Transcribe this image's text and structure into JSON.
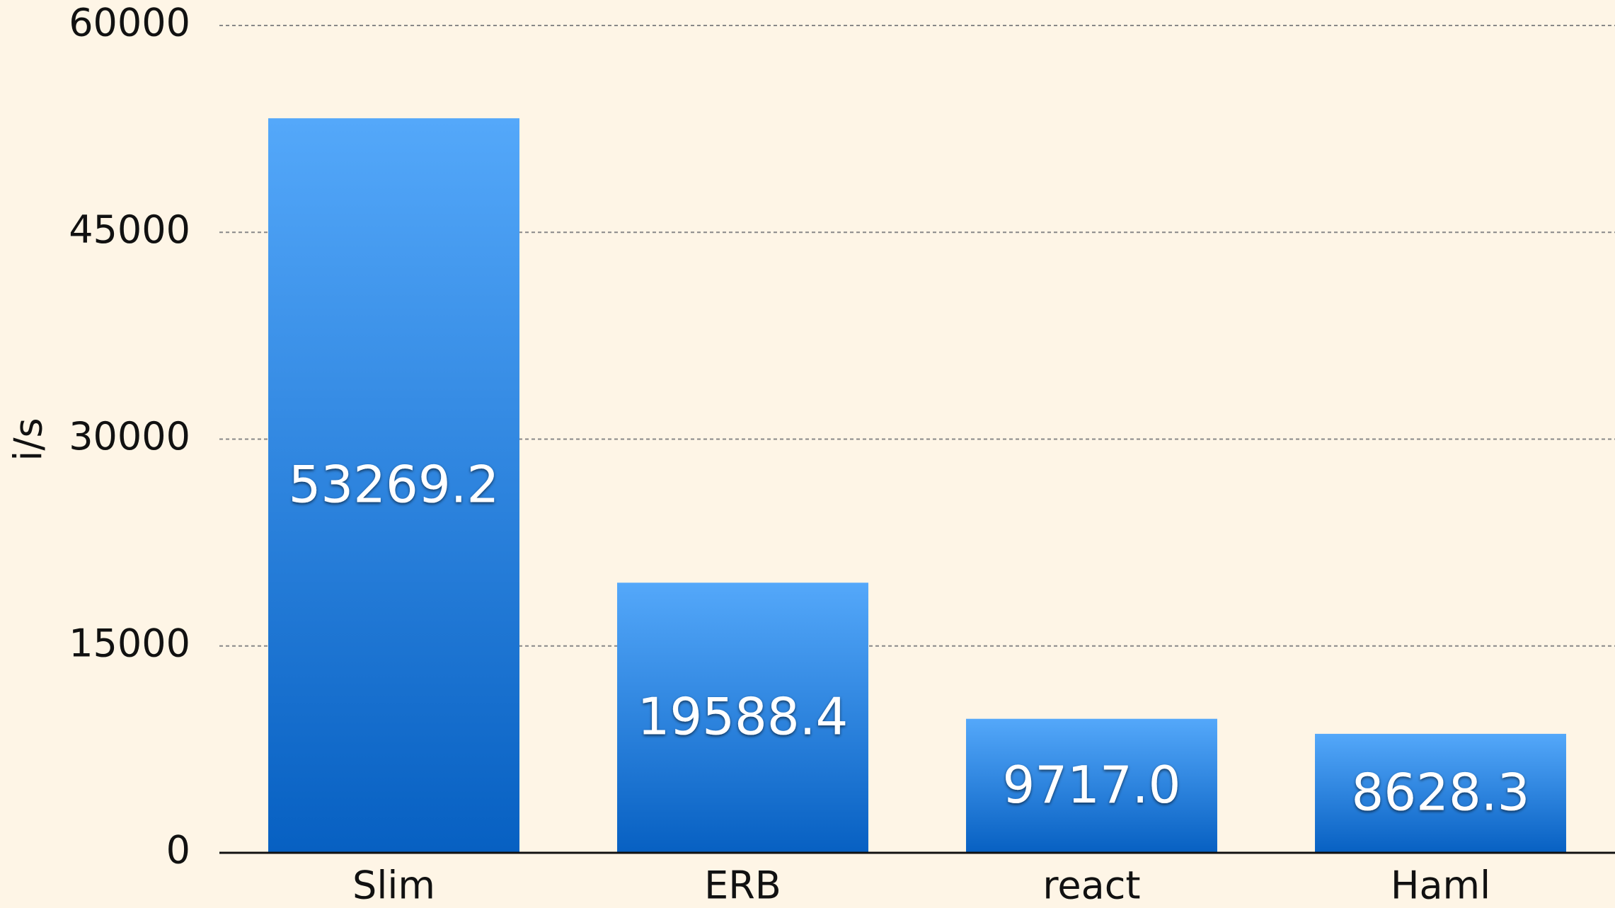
{
  "chart_data": {
    "type": "bar",
    "y_label": "i/s",
    "categories": [
      "Slim",
      "ERB",
      "react",
      "Haml"
    ],
    "values": [
      53269.2,
      19588.4,
      9717.0,
      8628.3
    ],
    "value_labels": [
      "53269.2",
      "19588.4",
      "9717.0",
      "8628.3"
    ],
    "color": [
      "#54a8fa",
      "#0760c2"
    ],
    "ylim": [
      0,
      60000
    ],
    "yticks": [
      0,
      15000,
      30000,
      45000,
      60000
    ],
    "grid": true
  }
}
